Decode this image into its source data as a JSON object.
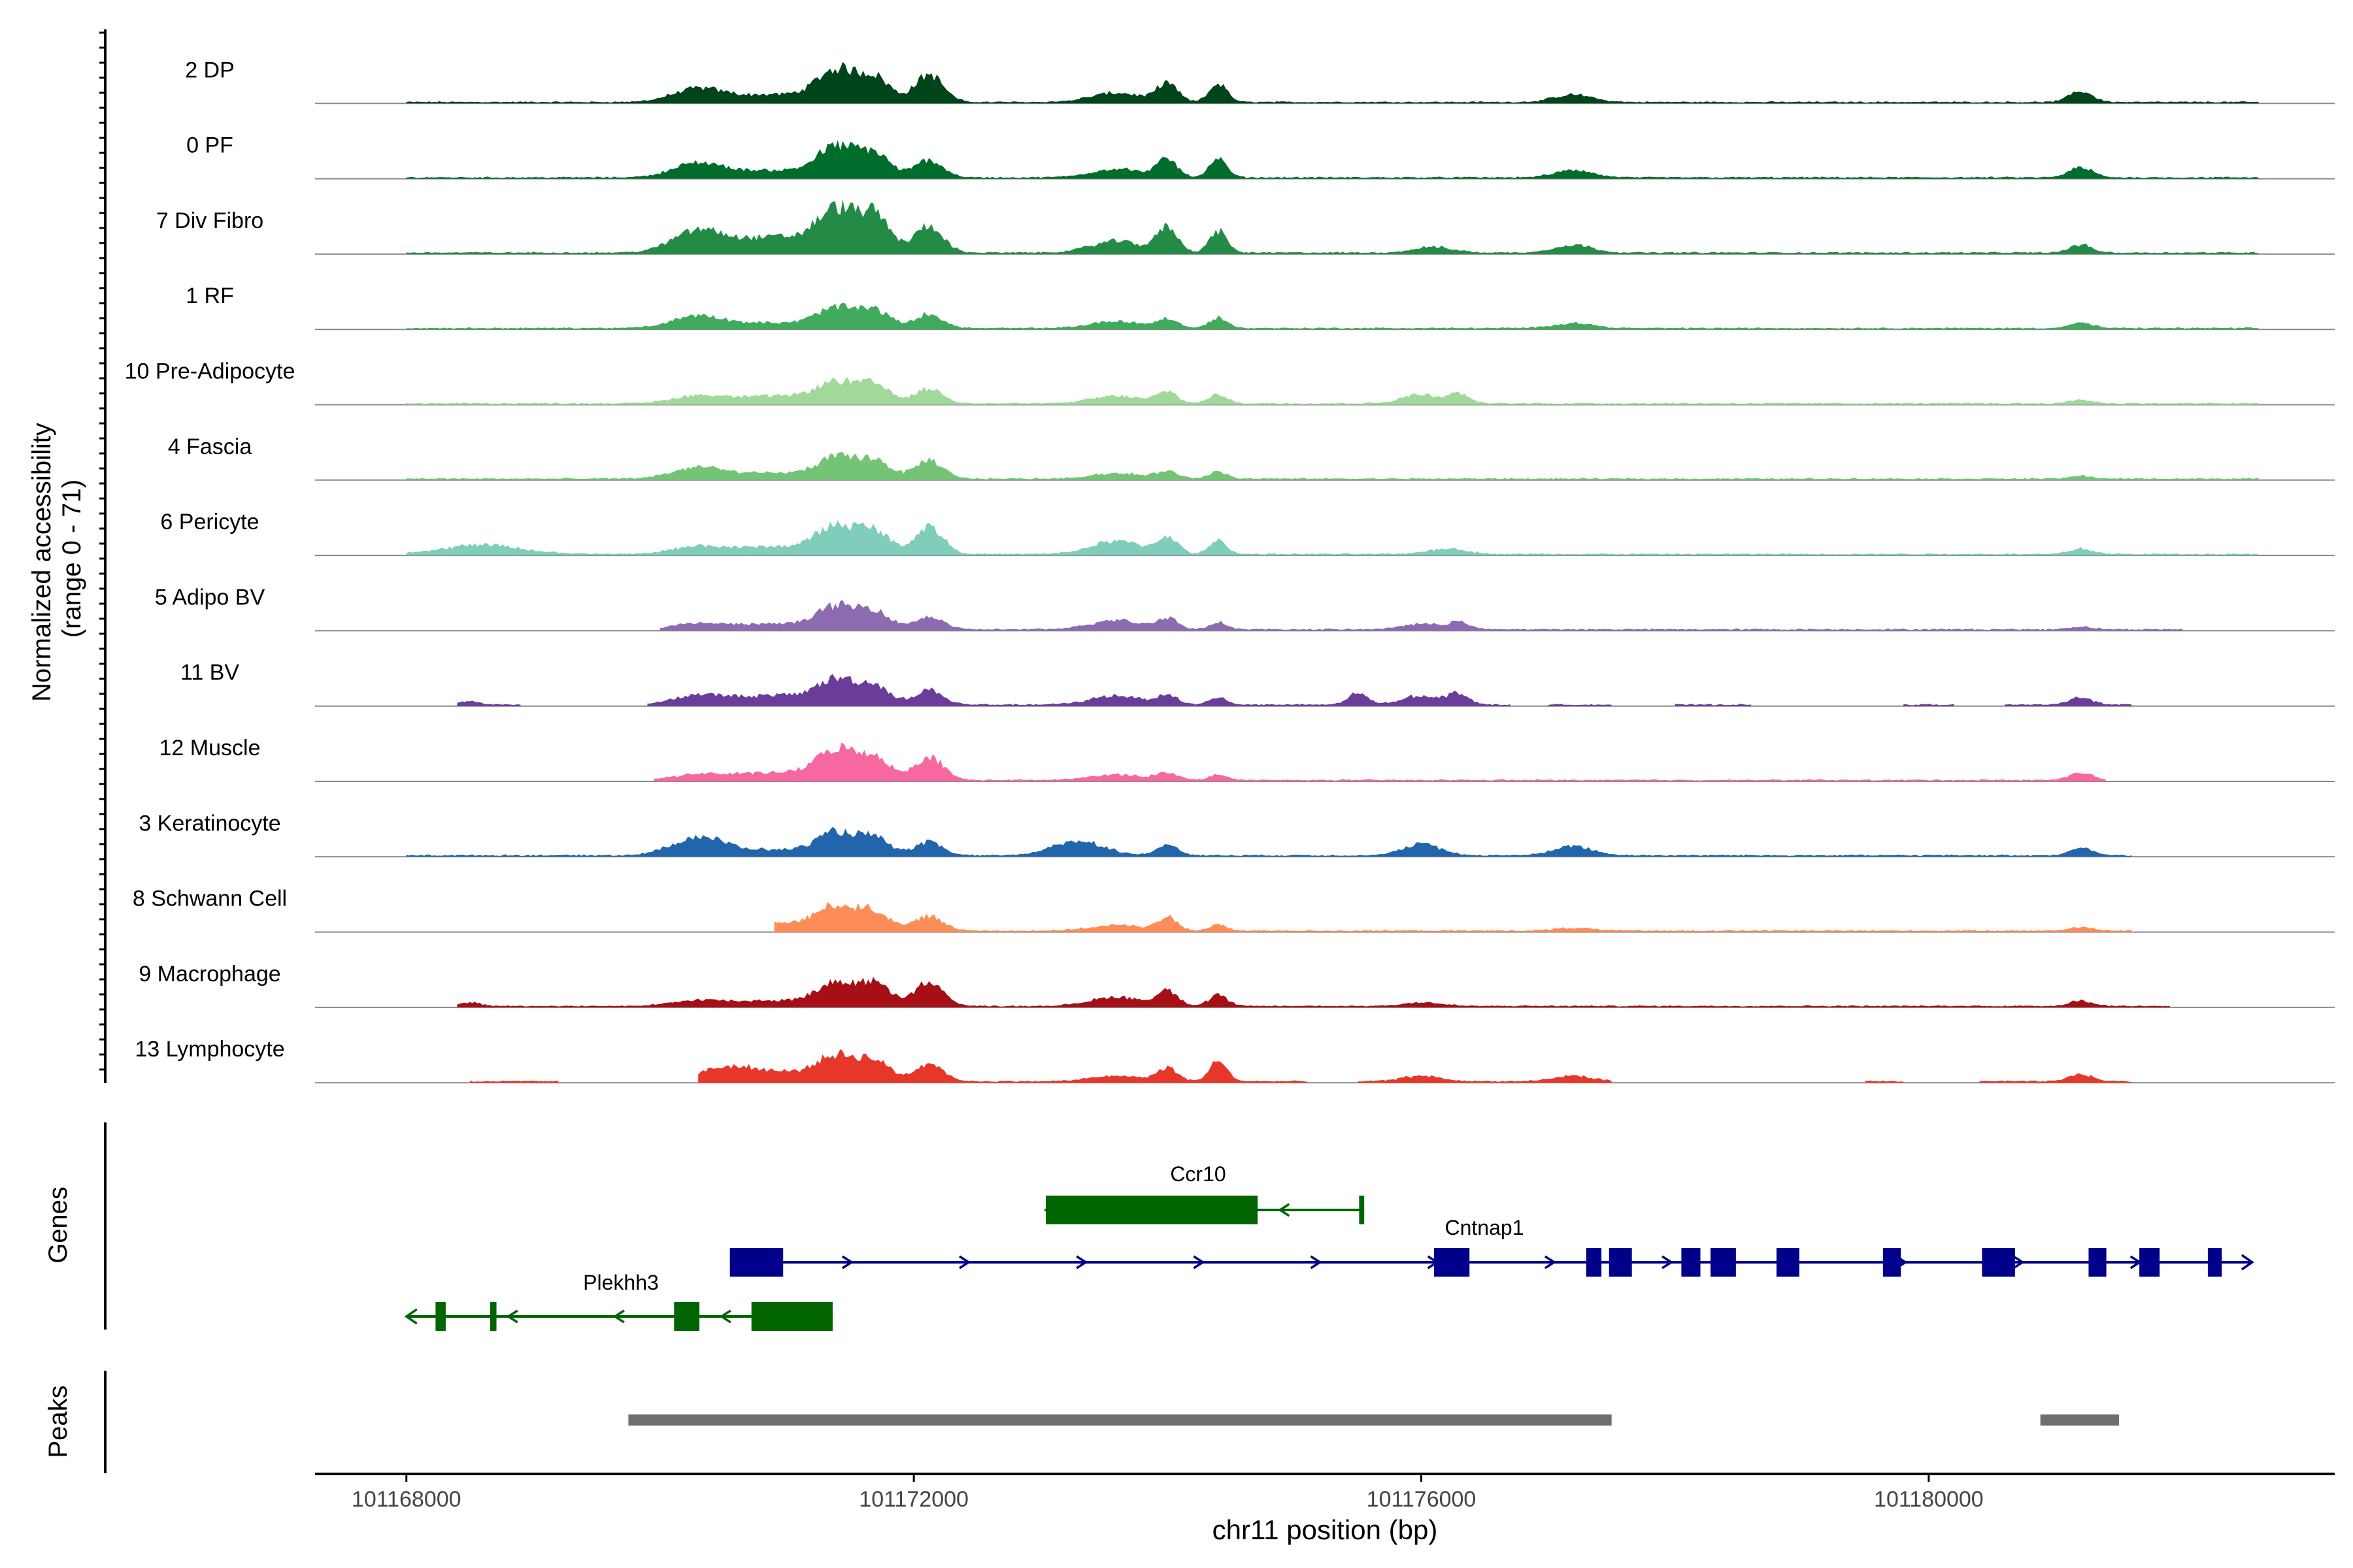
{
  "chart_data": {
    "type": "area",
    "title": "",
    "ylabel_lines": [
      "Normalized accessibility",
      "(range 0 - 71)"
    ],
    "xlabel": "chr11 position (bp)",
    "ylim": [
      0,
      71
    ],
    "xlim": [
      101167280,
      101183200
    ],
    "x_ticks": [
      101168000,
      101172000,
      101176000,
      101180000
    ],
    "x_tick_labels": [
      "101168000",
      "101172000",
      "101176000",
      "101180000"
    ],
    "tracks": [
      {
        "name": "2 DP",
        "color": "#00441B",
        "scale": 1.0,
        "segments": [
          [
            101168000,
            101182600
          ]
        ],
        "peaks": [
          [
            101170300,
            200,
            14
          ],
          [
            101170900,
            300,
            8
          ],
          [
            101171400,
            160,
            34
          ],
          [
            101171700,
            120,
            24
          ],
          [
            101172120,
            110,
            30
          ],
          [
            101173600,
            200,
            10
          ],
          [
            101174000,
            80,
            20
          ],
          [
            101174400,
            70,
            20
          ],
          [
            101177200,
            150,
            8
          ],
          [
            101181200,
            90,
            12
          ]
        ]
      },
      {
        "name": "0 PF",
        "color": "#006D2C",
        "scale": 0.95,
        "segments": [
          [
            101168000,
            101182600
          ]
        ],
        "peaks": [
          [
            101170300,
            200,
            16
          ],
          [
            101170900,
            300,
            8
          ],
          [
            101171400,
            160,
            34
          ],
          [
            101171700,
            120,
            24
          ],
          [
            101172120,
            110,
            20
          ],
          [
            101173600,
            200,
            10
          ],
          [
            101174000,
            80,
            20
          ],
          [
            101174400,
            70,
            20
          ],
          [
            101177200,
            150,
            8
          ],
          [
            101181200,
            90,
            12
          ]
        ]
      },
      {
        "name": "7 Div Fibro",
        "color": "#238B45",
        "scale": 1.05,
        "segments": [
          [
            101168000,
            101182600
          ]
        ],
        "peaks": [
          [
            101170300,
            200,
            22
          ],
          [
            101170900,
            300,
            16
          ],
          [
            101171400,
            160,
            42
          ],
          [
            101171700,
            120,
            34
          ],
          [
            101172120,
            110,
            28
          ],
          [
            101173600,
            200,
            12
          ],
          [
            101174000,
            80,
            26
          ],
          [
            101174400,
            70,
            22
          ],
          [
            101176100,
            150,
            6
          ],
          [
            101177200,
            150,
            8
          ],
          [
            101181200,
            90,
            8
          ]
        ]
      },
      {
        "name": "1 RF",
        "color": "#41AB5D",
        "scale": 0.95,
        "segments": [
          [
            101168000,
            101182600
          ]
        ],
        "peaks": [
          [
            101170300,
            200,
            14
          ],
          [
            101170900,
            300,
            6
          ],
          [
            101171400,
            160,
            22
          ],
          [
            101171700,
            120,
            18
          ],
          [
            101172120,
            110,
            16
          ],
          [
            101173600,
            200,
            8
          ],
          [
            101174000,
            80,
            10
          ],
          [
            101174400,
            70,
            12
          ],
          [
            101177200,
            150,
            6
          ],
          [
            101181200,
            90,
            6
          ]
        ]
      },
      {
        "name": "10 Pre-Adipocyte",
        "color": "#A1D99B",
        "scale": 1.0,
        "segments": [
          [
            101168000,
            101182600
          ]
        ],
        "peaks": [
          [
            101170300,
            200,
            8
          ],
          [
            101170900,
            300,
            8
          ],
          [
            101171400,
            160,
            22
          ],
          [
            101171700,
            120,
            18
          ],
          [
            101172120,
            110,
            16
          ],
          [
            101173600,
            200,
            8
          ],
          [
            101174000,
            80,
            12
          ],
          [
            101174400,
            70,
            10
          ],
          [
            101176000,
            150,
            10
          ],
          [
            101176300,
            80,
            10
          ],
          [
            101181200,
            90,
            4
          ]
        ]
      },
      {
        "name": "4 Fascia",
        "color": "#74C476",
        "scale": 1.0,
        "segments": [
          [
            101168000,
            101182600
          ]
        ],
        "peaks": [
          [
            101170300,
            200,
            12
          ],
          [
            101170900,
            300,
            6
          ],
          [
            101171400,
            160,
            22
          ],
          [
            101171700,
            120,
            18
          ],
          [
            101172120,
            110,
            20
          ],
          [
            101173600,
            200,
            6
          ],
          [
            101174000,
            80,
            8
          ],
          [
            101174400,
            70,
            8
          ],
          [
            101181200,
            90,
            3
          ]
        ]
      },
      {
        "name": "6 Pericyte",
        "color": "#7FCDBB",
        "scale": 1.0,
        "segments": [
          [
            101168000,
            101182600
          ]
        ],
        "peaks": [
          [
            101168600,
            300,
            10
          ],
          [
            101170300,
            200,
            8
          ],
          [
            101170900,
            300,
            8
          ],
          [
            101171400,
            160,
            30
          ],
          [
            101171700,
            120,
            22
          ],
          [
            101172120,
            110,
            30
          ],
          [
            101173600,
            200,
            14
          ],
          [
            101174000,
            80,
            18
          ],
          [
            101174400,
            70,
            14
          ],
          [
            101176200,
            150,
            6
          ],
          [
            101181200,
            90,
            6
          ]
        ]
      },
      {
        "name": "5 Adipo BV",
        "color": "#8C6BB1",
        "scale": 1.0,
        "segments": [
          [
            101170000,
            101182000
          ]
        ],
        "peaks": [
          [
            101170300,
            200,
            6
          ],
          [
            101170900,
            300,
            6
          ],
          [
            101171400,
            160,
            24
          ],
          [
            101171700,
            120,
            18
          ],
          [
            101172120,
            110,
            14
          ],
          [
            101173600,
            200,
            10
          ],
          [
            101174000,
            80,
            12
          ],
          [
            101174400,
            70,
            8
          ],
          [
            101176000,
            150,
            6
          ],
          [
            101176300,
            80,
            8
          ],
          [
            101181200,
            90,
            3
          ]
        ]
      },
      {
        "name": "11 BV",
        "color": "#6A3D9A",
        "scale": 1.0,
        "segments": [
          [
            101168400,
            101168900
          ],
          [
            101169900,
            101176700
          ],
          [
            101177000,
            101177500
          ],
          [
            101178000,
            101178600
          ],
          [
            101179800,
            101180200
          ],
          [
            101180600,
            101181600
          ]
        ],
        "peaks": [
          [
            101168500,
            80,
            4
          ],
          [
            101170300,
            200,
            10
          ],
          [
            101170900,
            300,
            10
          ],
          [
            101171400,
            160,
            26
          ],
          [
            101171700,
            120,
            18
          ],
          [
            101172120,
            110,
            16
          ],
          [
            101173600,
            200,
            10
          ],
          [
            101174000,
            80,
            10
          ],
          [
            101174400,
            70,
            8
          ],
          [
            101175500,
            80,
            12
          ],
          [
            101176000,
            150,
            10
          ],
          [
            101176300,
            80,
            12
          ],
          [
            101181200,
            90,
            8
          ]
        ]
      },
      {
        "name": "12 Muscle",
        "color": "#F768A1",
        "scale": 1.0,
        "segments": [
          [
            101169950,
            101181400
          ]
        ],
        "peaks": [
          [
            101170300,
            200,
            6
          ],
          [
            101170900,
            300,
            8
          ],
          [
            101171400,
            160,
            32
          ],
          [
            101171700,
            120,
            22
          ],
          [
            101172120,
            110,
            26
          ],
          [
            101173600,
            200,
            6
          ],
          [
            101174000,
            80,
            8
          ],
          [
            101174400,
            70,
            6
          ],
          [
            101181200,
            90,
            8
          ]
        ]
      },
      {
        "name": "3 Keratinocyte",
        "color": "#2166AC",
        "scale": 1.0,
        "segments": [
          [
            101168000,
            101181600
          ]
        ],
        "peaks": [
          [
            101170300,
            200,
            20
          ],
          [
            101170900,
            300,
            6
          ],
          [
            101171400,
            160,
            24
          ],
          [
            101171700,
            120,
            16
          ],
          [
            101172120,
            110,
            14
          ],
          [
            101173300,
            200,
            16
          ],
          [
            101174000,
            80,
            12
          ],
          [
            101176000,
            150,
            12
          ],
          [
            101177200,
            150,
            10
          ],
          [
            101181200,
            90,
            8
          ]
        ]
      },
      {
        "name": "8 Schwann Cell",
        "color": "#FC8D59",
        "scale": 1.0,
        "segments": [
          [
            101170900,
            101181600
          ]
        ],
        "peaks": [
          [
            101170900,
            300,
            8
          ],
          [
            101171400,
            160,
            26
          ],
          [
            101171700,
            120,
            18
          ],
          [
            101172120,
            110,
            16
          ],
          [
            101173600,
            200,
            6
          ],
          [
            101174000,
            80,
            14
          ],
          [
            101174400,
            70,
            6
          ],
          [
            101177200,
            150,
            3
          ],
          [
            101181200,
            90,
            4
          ]
        ]
      },
      {
        "name": "9 Macrophage",
        "color": "#A50F15",
        "scale": 1.0,
        "segments": [
          [
            101168400,
            101181900
          ]
        ],
        "peaks": [
          [
            101168500,
            80,
            4
          ],
          [
            101170300,
            200,
            6
          ],
          [
            101170900,
            300,
            6
          ],
          [
            101171400,
            160,
            24
          ],
          [
            101171700,
            120,
            22
          ],
          [
            101172120,
            110,
            26
          ],
          [
            101173600,
            200,
            10
          ],
          [
            101174000,
            80,
            16
          ],
          [
            101174400,
            70,
            12
          ],
          [
            101176000,
            150,
            4
          ],
          [
            101181200,
            90,
            6
          ]
        ]
      },
      {
        "name": "13 Lymphocyte",
        "color": "#E7372A",
        "scale": 1.0,
        "segments": [
          [
            101168500,
            101169200
          ],
          [
            101170300,
            101175100
          ],
          [
            101175500,
            101177500
          ],
          [
            101179500,
            101179800
          ],
          [
            101180400,
            101181600
          ]
        ],
        "peaks": [
          [
            101170500,
            200,
            12
          ],
          [
            101170900,
            300,
            10
          ],
          [
            101171400,
            160,
            26
          ],
          [
            101171700,
            120,
            20
          ],
          [
            101172120,
            110,
            20
          ],
          [
            101173600,
            200,
            6
          ],
          [
            101174000,
            80,
            14
          ],
          [
            101174400,
            70,
            22
          ],
          [
            101176000,
            150,
            6
          ],
          [
            101177200,
            150,
            6
          ],
          [
            101181200,
            90,
            8
          ]
        ]
      }
    ],
    "genes_label": "Genes",
    "genes": [
      {
        "name": "Ccr10",
        "strand": "-",
        "color": "#006400",
        "start": 101173040,
        "end": 101175550,
        "exons": [
          [
            101173040,
            101174710
          ],
          [
            101175510,
            101175550
          ]
        ]
      },
      {
        "name": "Cntnap1",
        "strand": "+",
        "color": "#00008B",
        "start": 101170550,
        "end": 101182550,
        "exons": [
          [
            101170550,
            101170970
          ],
          [
            101176100,
            101176380
          ],
          [
            101177300,
            101177420
          ],
          [
            101177480,
            101177660
          ],
          [
            101178050,
            101178200
          ],
          [
            101178280,
            101178480
          ],
          [
            101178800,
            101178980
          ],
          [
            101179640,
            101179780
          ],
          [
            101180420,
            101180680
          ],
          [
            101181260,
            101181400
          ],
          [
            101181660,
            101181820
          ],
          [
            101182200,
            101182310
          ]
        ]
      },
      {
        "name": "Plekhh3",
        "strand": "-",
        "color": "#006400",
        "start": 101168000,
        "end": 101171360,
        "exons": [
          [
            101168230,
            101168310
          ],
          [
            101168660,
            101168710
          ],
          [
            101170110,
            101170310
          ],
          [
            101170720,
            101171360
          ]
        ]
      }
    ],
    "peaks_label": "Peaks",
    "peak_regions": [
      [
        101169750,
        101177500
      ],
      [
        101180880,
        101181500
      ]
    ]
  }
}
